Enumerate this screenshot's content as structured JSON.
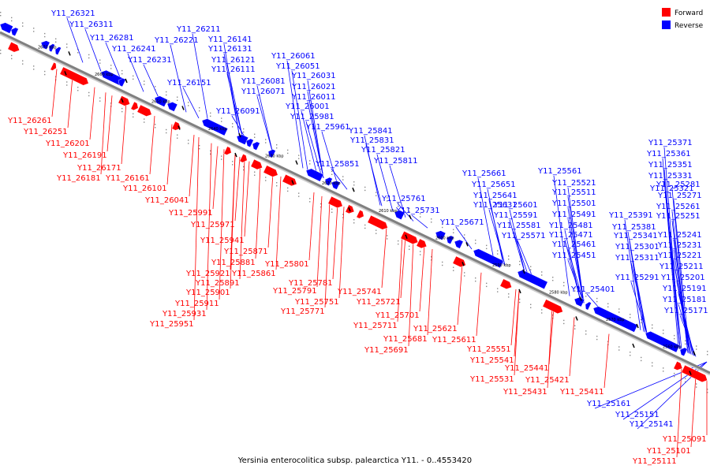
{
  "caption": "Yersinia enterocolitica subsp. palearctica Y11. - 0..4553420",
  "legend": [
    {
      "label": "Forward",
      "color": "#ff0000"
    },
    {
      "label": "Reverse",
      "color": "#0000ff"
    }
  ],
  "colors": {
    "forward": "#ff0000",
    "reverse": "#0000ff",
    "axis": "#808080"
  },
  "ticks": [
    "2670 kbp",
    "2660 kbp",
    "2650 kbp",
    "2640 kbp",
    "2630 kbp",
    "2620 kbp",
    "2610 kbp",
    "2600 kbp",
    "2590 kbp",
    "2580 kbp",
    "2570 kbp",
    "2560 kbp"
  ],
  "reverse_genes": [
    "Y11_26321",
    "Y11_26311",
    "Y11_26281",
    "Y11_26241",
    "Y11_26231",
    "Y11_26221",
    "Y11_26211",
    "Y11_26151",
    "Y11_26141",
    "Y11_26131",
    "Y11_26121",
    "Y11_26111",
    "Y11_26091",
    "Y11_26081",
    "Y11_26071",
    "Y11_26061",
    "Y11_26051",
    "Y11_26031",
    "Y11_26021",
    "Y11_26011",
    "Y11_26001",
    "Y11_25981",
    "Y11_25961",
    "Y11_25851",
    "Y11_25841",
    "Y11_25831",
    "Y11_25821",
    "Y11_25811",
    "Y11_25761",
    "Y11_25731",
    "Y11_25671",
    "Y11_25661",
    "Y11_25651",
    "Y11_25641",
    "Y11_25631",
    "Y11_25601",
    "Y11_25591",
    "Y11_25581",
    "Y11_25571",
    "Y11_25561",
    "Y11_25521",
    "Y11_25511",
    "Y11_25501",
    "Y11_25491",
    "Y11_25481",
    "Y11_25471",
    "Y11_25461",
    "Y11_25451",
    "Y11_25401",
    "Y11_25391",
    "Y11_25381",
    "Y11_25371",
    "Y11_25361",
    "Y11_25351",
    "Y11_25341",
    "Y11_25331",
    "Y11_25321",
    "Y11_25311",
    "Y11_25301",
    "Y11_25291",
    "Y11_25281",
    "Y11_25271",
    "Y11_25261",
    "Y11_25251",
    "Y11_25241",
    "Y11_25231",
    "Y11_25221",
    "Y11_25211",
    "Y11_25201",
    "Y11_25191",
    "Y11_25181",
    "Y11_25171",
    "Y11_25161",
    "Y11_25151",
    "Y11_25141"
  ],
  "forward_genes": [
    "Y11_26261",
    "Y11_26251",
    "Y11_26201",
    "Y11_26191",
    "Y11_26171",
    "Y11_26181",
    "Y11_26161",
    "Y11_26101",
    "Y11_26041",
    "Y11_25991",
    "Y11_25971",
    "Y11_25941",
    "Y11_25871",
    "Y11_25881",
    "Y11_25921",
    "Y11_25861",
    "Y11_25801",
    "Y11_25891",
    "Y11_25901",
    "Y11_25911",
    "Y11_25931",
    "Y11_25951",
    "Y11_25781",
    "Y11_25791",
    "Y11_25751",
    "Y11_25771",
    "Y11_25741",
    "Y11_25721",
    "Y11_25701",
    "Y11_25711",
    "Y11_25621",
    "Y11_25681",
    "Y11_25691",
    "Y11_25611",
    "Y11_25551",
    "Y11_25541",
    "Y11_25531",
    "Y11_25441",
    "Y11_25421",
    "Y11_25431",
    "Y11_25411",
    "Y11_25091",
    "Y11_25101",
    "Y11_25111"
  ]
}
